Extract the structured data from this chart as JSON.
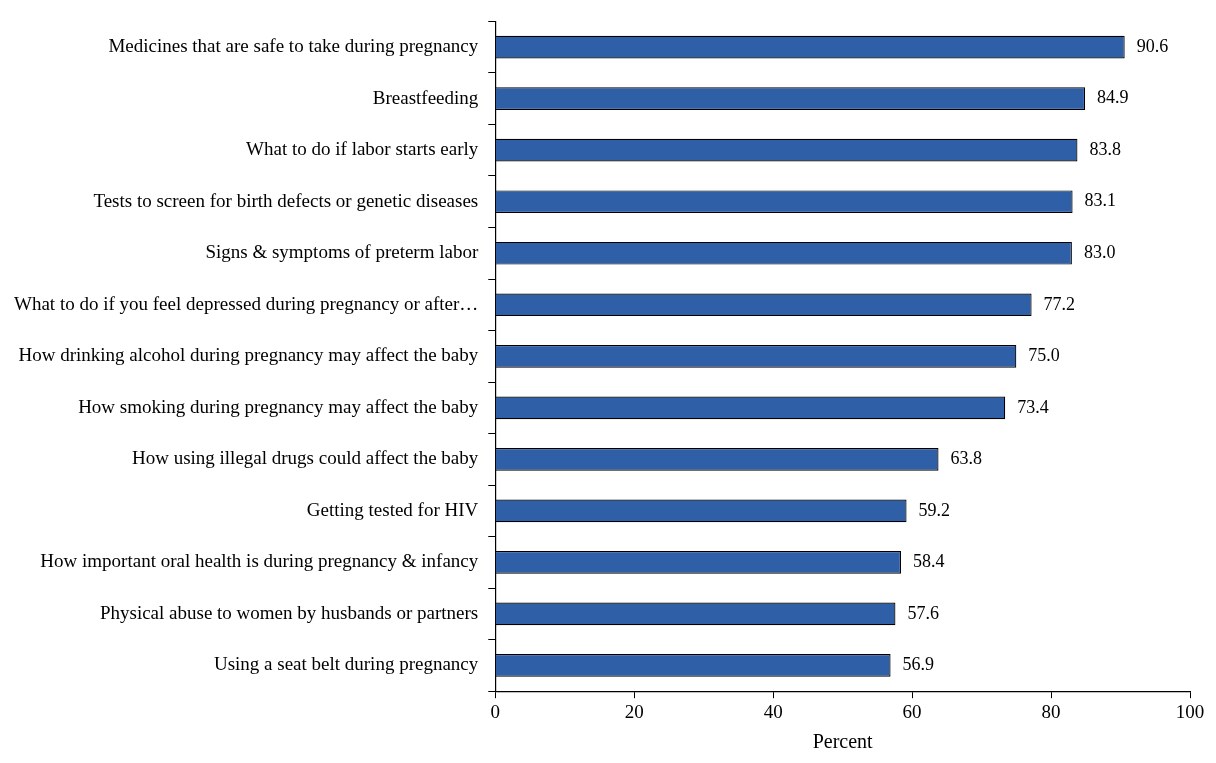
{
  "chart_data": {
    "type": "bar",
    "orientation": "horizontal",
    "xlabel": "Percent",
    "categories": [
      "Medicines that are safe to take during pregnancy",
      "Breastfeeding",
      "What to do if labor starts early",
      "Tests to screen for birth defects or genetic diseases",
      "Signs & symptoms of preterm labor",
      "What to do if you feel depressed during pregnancy or after…",
      "How drinking alcohol during pregnancy may affect the baby",
      "How smoking during pregnancy may affect the baby",
      "How using illegal drugs could affect the baby",
      "Getting tested for HIV",
      "How important oral health is during pregnancy & infancy",
      "Physical abuse to women by husbands or partners",
      "Using a seat belt during pregnancy"
    ],
    "values": [
      90.6,
      84.9,
      83.8,
      83.1,
      83.0,
      77.2,
      75.0,
      73.4,
      63.8,
      59.2,
      58.4,
      57.6,
      56.9
    ],
    "value_labels": [
      "90.6",
      "84.9",
      "83.8",
      "83.1",
      "83.0",
      "77.2",
      "75.0",
      "73.4",
      "63.8",
      "59.2",
      "58.4",
      "57.6",
      "56.9"
    ],
    "color": "#2f5fa7",
    "xlim": [
      0,
      100
    ],
    "xticks": [
      0,
      20,
      40,
      60,
      80,
      100
    ]
  }
}
